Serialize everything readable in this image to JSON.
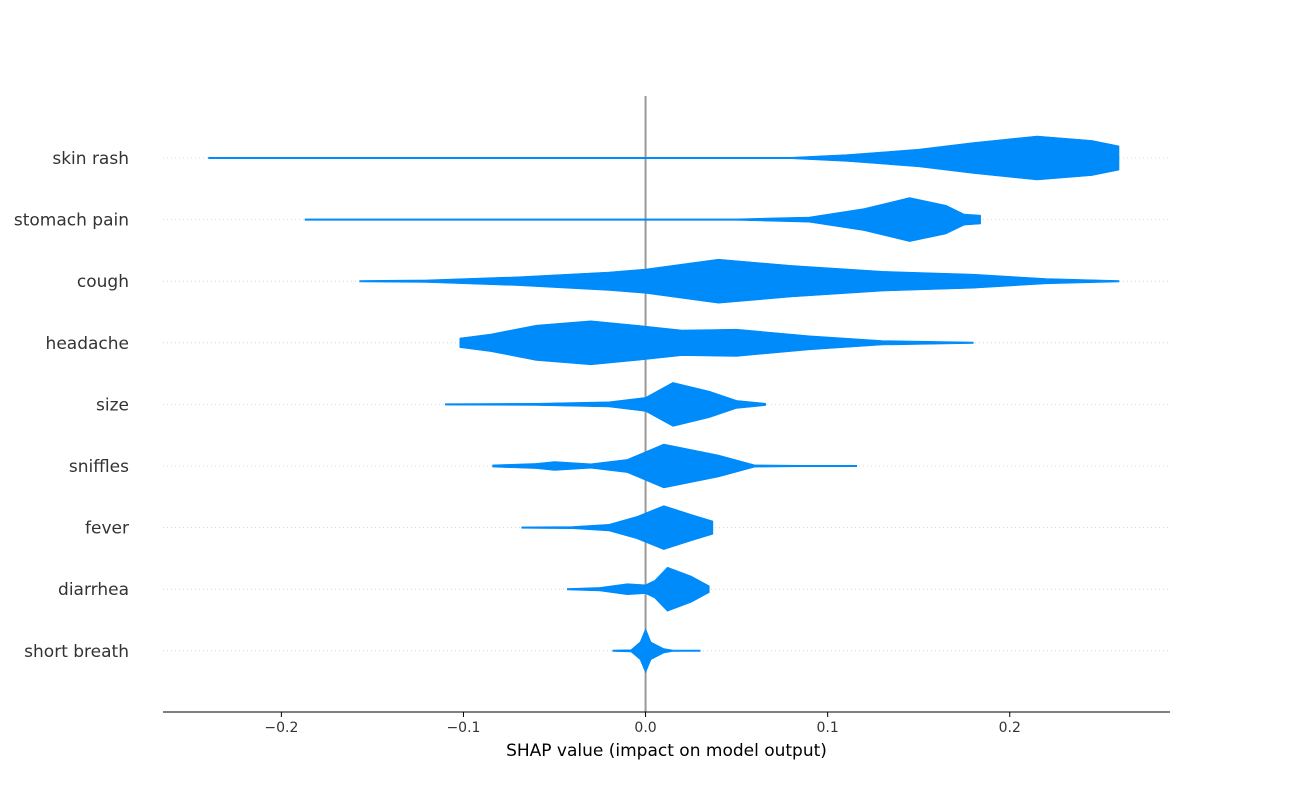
{
  "chart_data": {
    "type": "violin",
    "title": "",
    "xlabel": "SHAP value (impact on model output)",
    "ylabel": "",
    "xlim": [
      -0.265,
      0.288
    ],
    "xticks": [
      -0.2,
      -0.1,
      0.0,
      0.1,
      0.2
    ],
    "xtick_labels": [
      "−0.2",
      "−0.1",
      "0.0",
      "0.1",
      "0.2"
    ],
    "grid": "horizontal dotted",
    "color": "#008bfb",
    "zero_line_color": "#999999",
    "features": [
      {
        "name": "skin rash",
        "profile": [
          [
            -0.24,
            0.002
          ],
          [
            -0.22,
            0.002
          ],
          [
            -0.18,
            0.001
          ],
          [
            -0.15,
            0.0
          ],
          [
            0.05,
            0.0
          ],
          [
            0.08,
            0.03
          ],
          [
            0.11,
            0.15
          ],
          [
            0.15,
            0.4
          ],
          [
            0.18,
            0.7
          ],
          [
            0.215,
            1.0
          ],
          [
            0.245,
            0.8
          ],
          [
            0.26,
            0.55
          ]
        ]
      },
      {
        "name": "stomach pain",
        "profile": [
          [
            -0.187,
            0.002
          ],
          [
            -0.15,
            0.002
          ],
          [
            -0.14,
            0.0
          ],
          [
            0.02,
            0.0
          ],
          [
            0.05,
            0.03
          ],
          [
            0.09,
            0.12
          ],
          [
            0.12,
            0.5
          ],
          [
            0.145,
            1.0
          ],
          [
            0.165,
            0.65
          ],
          [
            0.175,
            0.25
          ],
          [
            0.184,
            0.2
          ]
        ]
      },
      {
        "name": "cough",
        "profile": [
          [
            -0.157,
            0.01
          ],
          [
            -0.12,
            0.06
          ],
          [
            -0.07,
            0.2
          ],
          [
            -0.02,
            0.42
          ],
          [
            0.0,
            0.55
          ],
          [
            0.04,
            1.0
          ],
          [
            0.08,
            0.72
          ],
          [
            0.13,
            0.45
          ],
          [
            0.18,
            0.32
          ],
          [
            0.22,
            0.12
          ],
          [
            0.26,
            0.01
          ]
        ]
      },
      {
        "name": "headache",
        "profile": [
          [
            -0.102,
            0.22
          ],
          [
            -0.085,
            0.4
          ],
          [
            -0.06,
            0.8
          ],
          [
            -0.03,
            1.0
          ],
          [
            -0.005,
            0.8
          ],
          [
            0.02,
            0.58
          ],
          [
            0.05,
            0.62
          ],
          [
            0.09,
            0.32
          ],
          [
            0.13,
            0.1
          ],
          [
            0.18,
            0.02
          ]
        ]
      },
      {
        "name": "size",
        "profile": [
          [
            -0.11,
            0.01
          ],
          [
            -0.06,
            0.05
          ],
          [
            -0.02,
            0.12
          ],
          [
            0.0,
            0.32
          ],
          [
            0.015,
            1.0
          ],
          [
            0.035,
            0.6
          ],
          [
            0.05,
            0.18
          ],
          [
            0.066,
            0.05
          ]
        ]
      },
      {
        "name": "sniffles",
        "profile": [
          [
            -0.084,
            0.05
          ],
          [
            -0.06,
            0.12
          ],
          [
            -0.05,
            0.2
          ],
          [
            -0.03,
            0.1
          ],
          [
            -0.01,
            0.3
          ],
          [
            0.01,
            1.0
          ],
          [
            0.04,
            0.5
          ],
          [
            0.06,
            0.05
          ],
          [
            0.085,
            0.01
          ],
          [
            0.116,
            0.01
          ]
        ]
      },
      {
        "name": "fever",
        "profile": [
          [
            -0.068,
            0.02
          ],
          [
            -0.04,
            0.05
          ],
          [
            -0.02,
            0.15
          ],
          [
            -0.005,
            0.5
          ],
          [
            0.01,
            1.0
          ],
          [
            0.025,
            0.6
          ],
          [
            0.037,
            0.3
          ]
        ]
      },
      {
        "name": "diarrhea",
        "profile": [
          [
            -0.043,
            0.02
          ],
          [
            -0.025,
            0.08
          ],
          [
            -0.01,
            0.25
          ],
          [
            0.0,
            0.2
          ],
          [
            0.005,
            0.4
          ],
          [
            0.012,
            1.0
          ],
          [
            0.025,
            0.6
          ],
          [
            0.035,
            0.15
          ]
        ]
      },
      {
        "name": "short breath",
        "profile": [
          [
            -0.018,
            0.0
          ],
          [
            -0.008,
            0.05
          ],
          [
            -0.003,
            0.4
          ],
          [
            0.0,
            1.0
          ],
          [
            0.003,
            0.4
          ],
          [
            0.01,
            0.1
          ],
          [
            0.015,
            0.03
          ],
          [
            0.03,
            0.0
          ]
        ]
      }
    ]
  }
}
